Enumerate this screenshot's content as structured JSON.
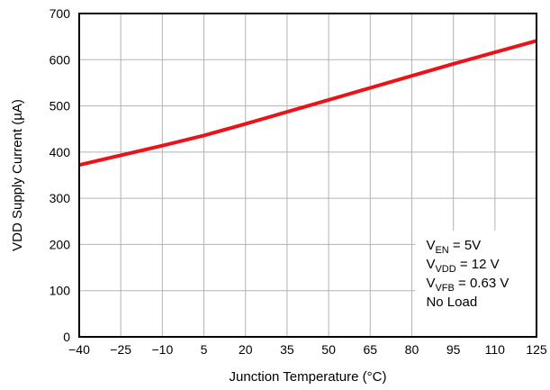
{
  "chart_data": {
    "type": "line",
    "xlabel": "Junction Temperature (°C)",
    "ylabel": "VDD Supply Current (µA)",
    "xlim": [
      -40,
      125
    ],
    "ylim": [
      0,
      700
    ],
    "x_ticks": [
      -40,
      -25,
      -10,
      5,
      20,
      35,
      50,
      65,
      80,
      95,
      110,
      125
    ],
    "x_tick_labels": [
      "−40",
      "−25",
      "−10",
      "5",
      "20",
      "35",
      "50",
      "65",
      "80",
      "95",
      "110",
      "125"
    ],
    "y_ticks": [
      0,
      100,
      200,
      300,
      400,
      500,
      600,
      700
    ],
    "grid": true,
    "series": [
      {
        "color": "#e8141a",
        "x": [
          -40,
          -25,
          -10,
          5,
          20,
          35,
          50,
          65,
          80,
          95,
          110,
          125
        ],
        "y": [
          372,
          393,
          414,
          436,
          461,
          487,
          513,
          539,
          565,
          591,
          616,
          641
        ]
      }
    ],
    "annotation": {
      "lines": [
        {
          "base": "V",
          "sub": "EN",
          "rest": " = 5V"
        },
        {
          "base": "V",
          "sub": "VDD",
          "rest": " = 12 V"
        },
        {
          "base": "V",
          "sub": "VFB",
          "rest": " = 0.63 V"
        },
        {
          "base": "No Load",
          "sub": "",
          "rest": ""
        }
      ]
    }
  }
}
